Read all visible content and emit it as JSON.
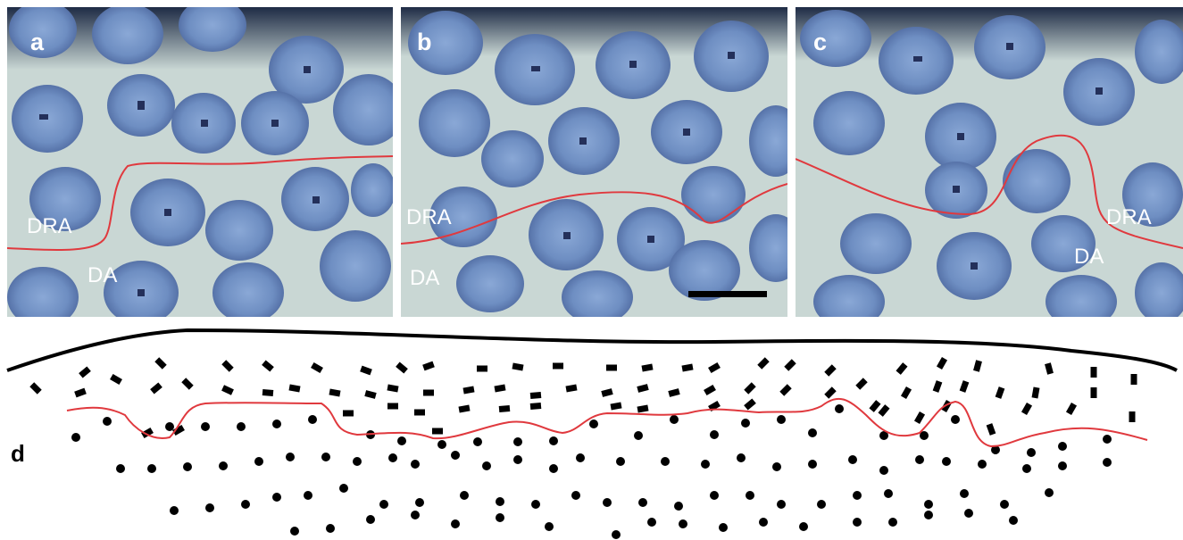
{
  "panels": [
    {
      "label": "a",
      "upper_label": "DRA",
      "lower_label": "DA"
    },
    {
      "label": "b",
      "upper_label": "DRA",
      "lower_label": "DA"
    },
    {
      "label": "c",
      "upper_label": "DRA",
      "lower_label": "DA"
    }
  ],
  "scheme_label": "d",
  "colors": {
    "boundary": "#e0393e",
    "ommatidium": "#6f8fc0",
    "background": "#c8d6d3",
    "dark_region": "#1d2840"
  }
}
